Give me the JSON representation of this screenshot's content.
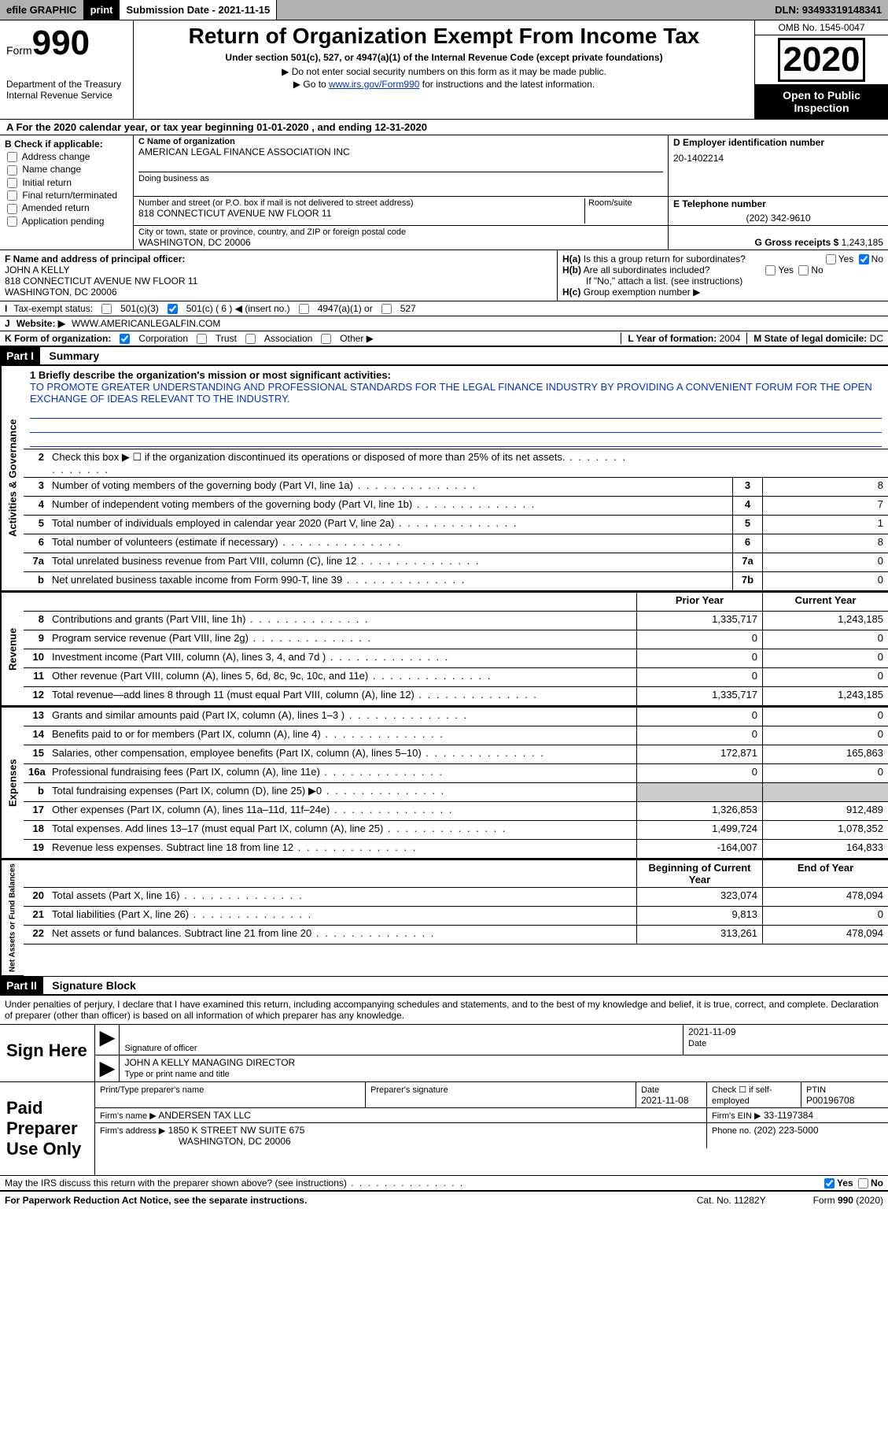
{
  "topbar": {
    "efile": "efile GRAPHIC",
    "print": "print",
    "subdate": "Submission Date - 2021-11-15",
    "dln": "DLN: 93493319148341"
  },
  "header": {
    "form_prefix": "Form",
    "form_num": "990",
    "dept": "Department of the Treasury\nInternal Revenue Service",
    "title": "Return of Organization Exempt From Income Tax",
    "subtitle": "Under section 501(c), 527, or 4947(a)(1) of the Internal Revenue Code (except private foundations)",
    "note1": "▶ Do not enter social security numbers on this form as it may be made public.",
    "note2_pre": "▶ Go to ",
    "note2_link": "www.irs.gov/Form990",
    "note2_post": " for instructions and the latest information.",
    "omb": "OMB No. 1545-0047",
    "year": "2020",
    "openpub": "Open to Public Inspection"
  },
  "periodA": "For the 2020 calendar year, or tax year beginning 01-01-2020   , and ending 12-31-2020",
  "colB": {
    "hdr": "B Check if applicable:",
    "items": [
      "Address change",
      "Name change",
      "Initial return",
      "Final return/terminated",
      "Amended return",
      "Application pending"
    ]
  },
  "colC": {
    "name_lbl": "C Name of organization",
    "name": "AMERICAN LEGAL FINANCE ASSOCIATION INC",
    "dba_lbl": "Doing business as",
    "addr_lbl": "Number and street (or P.O. box if mail is not delivered to street address)",
    "room_lbl": "Room/suite",
    "addr": "818 CONNECTICUT AVENUE NW FLOOR 11",
    "city_lbl": "City or town, state or province, country, and ZIP or foreign postal code",
    "city": "WASHINGTON, DC  20006"
  },
  "colD": {
    "lbl": "D Employer identification number",
    "val": "20-1402214"
  },
  "colE": {
    "lbl": "E Telephone number",
    "val": "(202) 342-9610"
  },
  "colG": {
    "lbl": "G Gross receipts $",
    "val": "1,243,185"
  },
  "colF": {
    "lbl": "F Name and address of principal officer:",
    "name": "JOHN A KELLY",
    "addr1": "818 CONNECTICUT AVENUE NW FLOOR 11",
    "addr2": "WASHINGTON, DC  20006"
  },
  "colH": {
    "ha": "Is this a group return for subordinates?",
    "hb": "Are all subordinates included?",
    "hb_note": "If \"No,\" attach a list. (see instructions)",
    "hc": "Group exemption number ▶",
    "yes": "Yes",
    "no": "No"
  },
  "lineI": {
    "lbl": "Tax-exempt status:",
    "opts": [
      "501(c)(3)",
      "501(c) ( 6 ) ◀ (insert no.)",
      "4947(a)(1) or",
      "527"
    ]
  },
  "lineJ": {
    "lbl": "Website: ▶",
    "val": "WWW.AMERICANLEGALFIN.COM"
  },
  "lineK": {
    "lbl": "K Form of organization:",
    "opts": [
      "Corporation",
      "Trust",
      "Association",
      "Other ▶"
    ]
  },
  "lineL": {
    "lbl": "L Year of formation:",
    "val": "2004"
  },
  "lineM": {
    "lbl": "M State of legal domicile:",
    "val": "DC"
  },
  "part1": {
    "hdr": "Part I",
    "title": "Summary"
  },
  "mission": {
    "line1_lbl": "1   Briefly describe the organization's mission or most significant activities:",
    "text": "TO PROMOTE GREATER UNDERSTANDING AND PROFESSIONAL STANDARDS FOR THE LEGAL FINANCE INDUSTRY BY PROVIDING A CONVENIENT FORUM FOR THE OPEN EXCHANGE OF IDEAS RELEVANT TO THE INDUSTRY."
  },
  "gov_rows": [
    {
      "n": "2",
      "d": "Check this box ▶ ☐  if the organization discontinued its operations or disposed of more than 25% of its net assets.",
      "box": "",
      "v": ""
    },
    {
      "n": "3",
      "d": "Number of voting members of the governing body (Part VI, line 1a)",
      "box": "3",
      "v": "8"
    },
    {
      "n": "4",
      "d": "Number of independent voting members of the governing body (Part VI, line 1b)",
      "box": "4",
      "v": "7"
    },
    {
      "n": "5",
      "d": "Total number of individuals employed in calendar year 2020 (Part V, line 2a)",
      "box": "5",
      "v": "1"
    },
    {
      "n": "6",
      "d": "Total number of volunteers (estimate if necessary)",
      "box": "6",
      "v": "8"
    },
    {
      "n": "7a",
      "d": "Total unrelated business revenue from Part VIII, column (C), line 12",
      "box": "7a",
      "v": "0"
    },
    {
      "n": "b",
      "d": "Net unrelated business taxable income from Form 990-T, line 39",
      "box": "7b",
      "v": "0"
    }
  ],
  "col_hdrs": {
    "prior": "Prior Year",
    "current": "Current Year"
  },
  "rev_rows": [
    {
      "n": "8",
      "d": "Contributions and grants (Part VIII, line 1h)",
      "p": "1,335,717",
      "c": "1,243,185"
    },
    {
      "n": "9",
      "d": "Program service revenue (Part VIII, line 2g)",
      "p": "0",
      "c": "0"
    },
    {
      "n": "10",
      "d": "Investment income (Part VIII, column (A), lines 3, 4, and 7d )",
      "p": "0",
      "c": "0"
    },
    {
      "n": "11",
      "d": "Other revenue (Part VIII, column (A), lines 5, 6d, 8c, 9c, 10c, and 11e)",
      "p": "0",
      "c": "0"
    },
    {
      "n": "12",
      "d": "Total revenue—add lines 8 through 11 (must equal Part VIII, column (A), line 12)",
      "p": "1,335,717",
      "c": "1,243,185"
    }
  ],
  "exp_rows": [
    {
      "n": "13",
      "d": "Grants and similar amounts paid (Part IX, column (A), lines 1–3 )",
      "p": "0",
      "c": "0"
    },
    {
      "n": "14",
      "d": "Benefits paid to or for members (Part IX, column (A), line 4)",
      "p": "0",
      "c": "0"
    },
    {
      "n": "15",
      "d": "Salaries, other compensation, employee benefits (Part IX, column (A), lines 5–10)",
      "p": "172,871",
      "c": "165,863"
    },
    {
      "n": "16a",
      "d": "Professional fundraising fees (Part IX, column (A), line 11e)",
      "p": "0",
      "c": "0"
    },
    {
      "n": "b",
      "d": "Total fundraising expenses (Part IX, column (D), line 25) ▶0",
      "p": "",
      "c": "",
      "shade": true
    },
    {
      "n": "17",
      "d": "Other expenses (Part IX, column (A), lines 11a–11d, 11f–24e)",
      "p": "1,326,853",
      "c": "912,489"
    },
    {
      "n": "18",
      "d": "Total expenses. Add lines 13–17 (must equal Part IX, column (A), line 25)",
      "p": "1,499,724",
      "c": "1,078,352"
    },
    {
      "n": "19",
      "d": "Revenue less expenses. Subtract line 18 from line 12",
      "p": "-164,007",
      "c": "164,833"
    }
  ],
  "na_hdrs": {
    "begin": "Beginning of Current Year",
    "end": "End of Year"
  },
  "na_rows": [
    {
      "n": "20",
      "d": "Total assets (Part X, line 16)",
      "p": "323,074",
      "c": "478,094"
    },
    {
      "n": "21",
      "d": "Total liabilities (Part X, line 26)",
      "p": "9,813",
      "c": "0"
    },
    {
      "n": "22",
      "d": "Net assets or fund balances. Subtract line 21 from line 20",
      "p": "313,261",
      "c": "478,094"
    }
  ],
  "side_labels": {
    "gov": "Activities & Governance",
    "rev": "Revenue",
    "exp": "Expenses",
    "na": "Net Assets or Fund Balances"
  },
  "part2": {
    "hdr": "Part II",
    "title": "Signature Block"
  },
  "penalty": "Under penalties of perjury, I declare that I have examined this return, including accompanying schedules and statements, and to the best of my knowledge and belief, it is true, correct, and complete. Declaration of preparer (other than officer) is based on all information of which preparer has any knowledge.",
  "sign": {
    "lbl": "Sign Here",
    "sig_lbl": "Signature of officer",
    "date_lbl": "Date",
    "date": "2021-11-09",
    "name": "JOHN A KELLY MANAGING DIRECTOR",
    "name_lbl": "Type or print name and title"
  },
  "paid": {
    "lbl": "Paid Preparer Use Only",
    "r1": {
      "a": "Print/Type preparer's name",
      "b": "Preparer's signature",
      "c": "Date",
      "cv": "2021-11-08",
      "d": "Check ☐ if self-employed",
      "e": "PTIN",
      "ev": "P00196708"
    },
    "r2": {
      "a": "Firm's name   ▶",
      "av": "ANDERSEN TAX LLC",
      "b": "Firm's EIN ▶",
      "bv": "33-1197384"
    },
    "r3": {
      "a": "Firm's address ▶",
      "av": "1850 K STREET NW SUITE 675",
      "av2": "WASHINGTON, DC  20006",
      "b": "Phone no.",
      "bv": "(202) 223-5000"
    }
  },
  "discuss": "May the IRS discuss this return with the preparer shown above? (see instructions)",
  "footer": {
    "left": "For Paperwork Reduction Act Notice, see the separate instructions.",
    "mid": "Cat. No. 11282Y",
    "right": "Form 990 (2020)"
  }
}
